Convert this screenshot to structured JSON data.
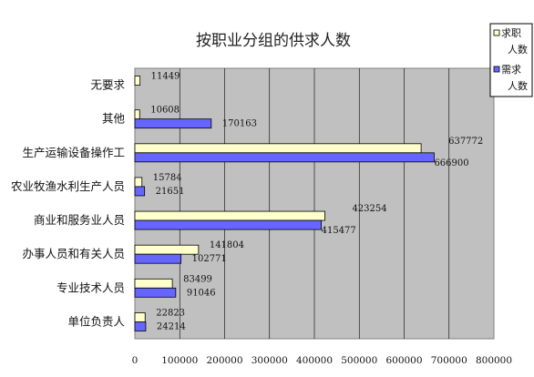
{
  "chart_data": {
    "type": "bar",
    "orientation": "horizontal",
    "title": "按职业分组的供求人数",
    "categories": [
      "无要求",
      "其他",
      "生产运输设备操作工",
      "农业牧渔水利生产人员",
      "商业和服务业人员",
      "办事人员和有关人员",
      "专业技术人员",
      "单位负责人"
    ],
    "series": [
      {
        "name": "求职人数",
        "color": "#ffffcc",
        "values": [
          11449,
          10608,
          637772,
          15784,
          423254,
          141804,
          83499,
          22823
        ]
      },
      {
        "name": "需求人数",
        "color": "#6666ff",
        "values": [
          null,
          170163,
          666900,
          21651,
          415477,
          102771,
          91046,
          24214
        ]
      }
    ],
    "x_ticks": [
      "0",
      "100000",
      "200000",
      "300000",
      "400000",
      "500000",
      "600000",
      "700000",
      "800000"
    ],
    "xlim": [
      0,
      800000
    ],
    "plot_background": "#c0c0c0",
    "grid": true,
    "legend_position": "top-right"
  }
}
